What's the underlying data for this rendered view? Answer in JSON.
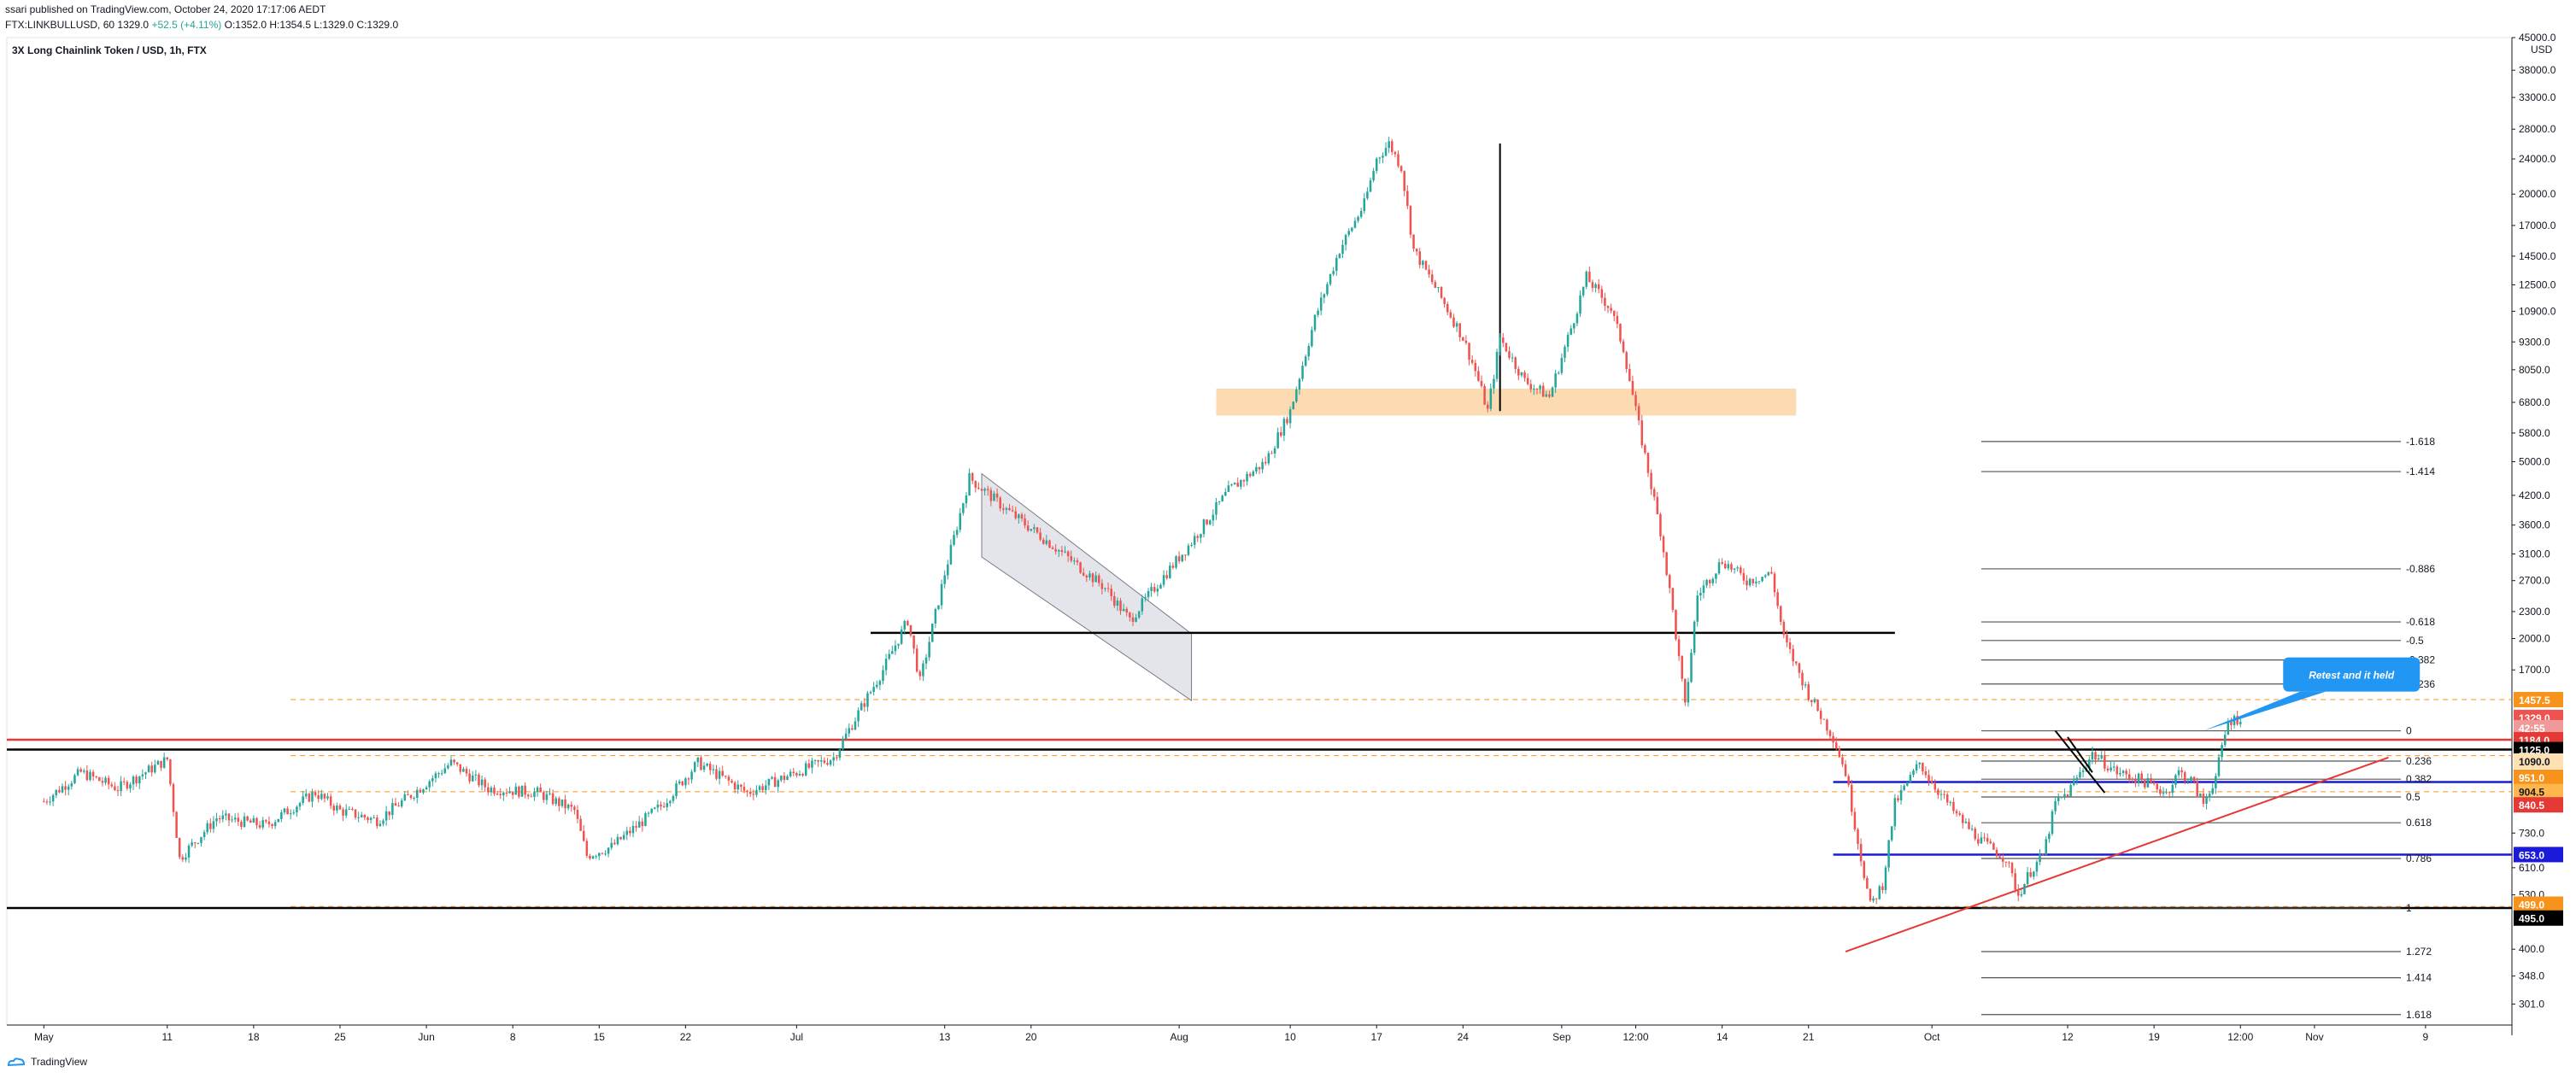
{
  "header": {
    "published": "ssari published on TradingView.com, October 24, 2020 17:17:06 AEDT",
    "symbol_line": "FTX:LINKBULLUSD, 60",
    "last": "1329.0",
    "change": "+52.5 (+4.11%)",
    "ohlc": "O:1352.0 H:1354.5 L:1329.0 C:1329.0"
  },
  "chart_data": {
    "type": "candlestick",
    "title": "3X Long Chainlink Token / USD, 1h, FTX",
    "y_scale": "log",
    "y_unit": "USD",
    "ylim": [
      270,
      45000
    ],
    "y_ticks": [
      "45000.0",
      "38000.0",
      "33000.0",
      "28000.0",
      "24000.0",
      "20000.0",
      "17000.0",
      "14500.0",
      "12500.0",
      "10900.0",
      "9300.0",
      "8050.0",
      "6800.0",
      "5800.0",
      "5000.0",
      "4200.0",
      "3600.0",
      "3100.0",
      "2700.0",
      "2300.0",
      "2000.0",
      "1700.0",
      "730.0",
      "610.0",
      "530.0",
      "400.0",
      "348.0",
      "301.0"
    ],
    "y_tick_values": [
      45000,
      38000,
      33000,
      28000,
      24000,
      20000,
      17000,
      14500,
      12500,
      10900,
      9300,
      8050,
      6800,
      5800,
      5000,
      4200,
      3600,
      3100,
      2700,
      2300,
      2000,
      1700,
      730,
      610,
      530,
      400,
      348,
      301
    ],
    "x_ticks": [
      "May",
      "11",
      "18",
      "25",
      "Jun",
      "8",
      "15",
      "22",
      "Jul",
      "13",
      "20",
      "Aug",
      "10",
      "17",
      "24",
      "Sep",
      "12:00",
      "14",
      "21",
      "Oct",
      "12",
      "19",
      "12:00",
      "Nov",
      "9"
    ],
    "x_tick_days": [
      0,
      10,
      17,
      24,
      31,
      38,
      45,
      52,
      61,
      73,
      80,
      92,
      101,
      108,
      115,
      123,
      129,
      136,
      143,
      153,
      164,
      171,
      178,
      184,
      193
    ],
    "price_path": [
      [
        0,
        860
      ],
      [
        3,
        1000
      ],
      [
        6,
        920
      ],
      [
        10,
        1070
      ],
      [
        11,
        640
      ],
      [
        14,
        790
      ],
      [
        18,
        760
      ],
      [
        22,
        900
      ],
      [
        24,
        820
      ],
      [
        27,
        780
      ],
      [
        30,
        900
      ],
      [
        33,
        1050
      ],
      [
        36,
        920
      ],
      [
        40,
        900
      ],
      [
        43,
        820
      ],
      [
        44,
        650
      ],
      [
        46,
        680
      ],
      [
        50,
        840
      ],
      [
        53,
        1050
      ],
      [
        57,
        900
      ],
      [
        61,
        1000
      ],
      [
        64,
        1080
      ],
      [
        66,
        1360
      ],
      [
        68,
        1700
      ],
      [
        70,
        2200
      ],
      [
        71,
        1600
      ],
      [
        73,
        2800
      ],
      [
        75,
        4600
      ],
      [
        78,
        3900
      ],
      [
        82,
        3200
      ],
      [
        86,
        2600
      ],
      [
        88,
        2200
      ],
      [
        90,
        2600
      ],
      [
        93,
        3300
      ],
      [
        96,
        4300
      ],
      [
        99,
        5000
      ],
      [
        101,
        6500
      ],
      [
        103,
        10500
      ],
      [
        105,
        15000
      ],
      [
        107,
        19000
      ],
      [
        108,
        24000
      ],
      [
        109,
        26000
      ],
      [
        110,
        23000
      ],
      [
        111,
        15000
      ],
      [
        113,
        12000
      ],
      [
        115,
        9500
      ],
      [
        116,
        8000
      ],
      [
        117,
        6500
      ],
      [
        118,
        9500
      ],
      [
        120,
        7600
      ],
      [
        122,
        7000
      ],
      [
        124,
        10500
      ],
      [
        125,
        13000
      ],
      [
        127,
        11000
      ],
      [
        128,
        9000
      ],
      [
        129,
        6500
      ],
      [
        131,
        3500
      ],
      [
        132,
        2300
      ],
      [
        133,
        1400
      ],
      [
        134,
        2500
      ],
      [
        136,
        3000
      ],
      [
        138,
        2700
      ],
      [
        140,
        2800
      ],
      [
        141,
        2000
      ],
      [
        143,
        1500
      ],
      [
        145,
        1200
      ],
      [
        146,
        1000
      ],
      [
        147,
        700
      ],
      [
        148,
        500
      ],
      [
        149,
        560
      ],
      [
        150,
        850
      ],
      [
        152,
        1050
      ],
      [
        153,
        950
      ],
      [
        155,
        800
      ],
      [
        157,
        700
      ],
      [
        159,
        640
      ],
      [
        160,
        530
      ],
      [
        161,
        600
      ],
      [
        162,
        650
      ],
      [
        163,
        850
      ],
      [
        164,
        900
      ],
      [
        166,
        1100
      ],
      [
        167,
        1050
      ],
      [
        168,
        1000
      ],
      [
        170,
        960
      ],
      [
        172,
        900
      ],
      [
        173,
        1000
      ],
      [
        174,
        960
      ],
      [
        175,
        850
      ],
      [
        176,
        980
      ],
      [
        177,
        1300
      ],
      [
        178,
        1330
      ]
    ],
    "horizontal_levels": [
      {
        "price": 1184.0,
        "color": "#e53935",
        "label": "1184.0"
      },
      {
        "price": 1125.0,
        "color": "#000000",
        "label": "1125.0"
      },
      {
        "price": 495.0,
        "color": "#000000",
        "label": "495.0"
      },
      {
        "price": 951.0,
        "color": "#1a1ad8",
        "label": "951.0"
      },
      {
        "price": 653.0,
        "color": "#1a1ad8",
        "label": "653.0"
      },
      {
        "price": 2060,
        "color": "#000000",
        "label": ""
      }
    ],
    "dashed_levels": [
      {
        "price": 1457.5,
        "label": "1457.5"
      },
      {
        "price": 1090.0,
        "label": "1090.0"
      },
      {
        "price": 904.5,
        "label": "904.5"
      },
      {
        "price": 499.0,
        "label": "499.0"
      }
    ],
    "price_labels": [
      {
        "text": "1457.5",
        "price": 1457.5,
        "bg": "#f7931a",
        "fg": "#ffffff"
      },
      {
        "text": "1329.0",
        "price": 1329.0,
        "bg": "#ef5350",
        "fg": "#ffffff"
      },
      {
        "text": "42:55",
        "price": 1260.0,
        "bg": "#ef9a9a",
        "fg": "#ffffff"
      },
      {
        "text": "1184.0",
        "price": 1184.0,
        "bg": "#e53935",
        "fg": "#ffffff"
      },
      {
        "text": "1125.0",
        "price": 1125.0,
        "bg": "#000000",
        "fg": "#ffffff"
      },
      {
        "text": "1090.0",
        "price": 1060.0,
        "bg": "#ffe0b2",
        "fg": "#131722"
      },
      {
        "text": "951.0",
        "price": 975.0,
        "bg": "#f7931a",
        "fg": "#ffffff"
      },
      {
        "text": "904.5",
        "price": 905.0,
        "bg": "#ffb74d",
        "fg": "#131722"
      },
      {
        "text": "840.5",
        "price": 845.0,
        "bg": "#e53935",
        "fg": "#ffffff"
      },
      {
        "text": "653.0",
        "price": 653.0,
        "bg": "#1a1ad8",
        "fg": "#ffffff"
      },
      {
        "text": "499.0",
        "price": 505.0,
        "bg": "#f7931a",
        "fg": "#ffffff"
      },
      {
        "text": "495.0",
        "price": 470.0,
        "bg": "#000000",
        "fg": "#ffffff"
      }
    ],
    "fib_levels": [
      {
        "level": "-1.618",
        "price": 5550
      },
      {
        "level": "-1.414",
        "price": 4750
      },
      {
        "level": "-0.886",
        "price": 2870
      },
      {
        "level": "-0.618",
        "price": 2180
      },
      {
        "level": "-0.5",
        "price": 1980
      },
      {
        "level": "-0.382",
        "price": 1790
      },
      {
        "level": "-0.236",
        "price": 1580
      },
      {
        "level": "0",
        "price": 1240
      },
      {
        "level": "0.236",
        "price": 1060
      },
      {
        "level": "0.382",
        "price": 965
      },
      {
        "level": "0.5",
        "price": 880
      },
      {
        "level": "0.618",
        "price": 770
      },
      {
        "level": "0.786",
        "price": 640
      },
      {
        "level": "1",
        "price": 495
      },
      {
        "level": "1.272",
        "price": 395
      },
      {
        "level": "1.414",
        "price": 345
      },
      {
        "level": "1.618",
        "price": 285
      }
    ],
    "fib_x_days": [
      157,
      191
    ],
    "supply_zone": {
      "day_start": 95,
      "day_end": 142,
      "price_low": 6350,
      "price_high": 7300,
      "color": "#fbd5a5"
    },
    "channel": {
      "p1": [
        76,
        4700
      ],
      "p2": [
        93,
        2050
      ],
      "p3": [
        93,
        1450
      ],
      "p4": [
        76,
        3050
      ]
    },
    "uptrend_line": {
      "start": [
        146,
        395
      ],
      "end": [
        190,
        1080
      ],
      "color": "#e53935"
    },
    "breakout_line": {
      "start": [
        67,
        2030
      ],
      "end": [
        150,
        2110
      ],
      "color": "#000000"
    },
    "vertical_line": {
      "day": 118,
      "price_top": 26000,
      "price_bottom": 6500
    },
    "callout": {
      "text": "Retest and it held",
      "price": 1660,
      "day": 187,
      "arrow_to": [
        175,
        1240
      ],
      "color": "#2196f3"
    }
  },
  "axis": {
    "currency": "USD"
  },
  "footer": {
    "brand": "TradingView"
  },
  "colors": {
    "up": "#26a69a",
    "down": "#ef5350",
    "grid": "#f0f3fa"
  }
}
